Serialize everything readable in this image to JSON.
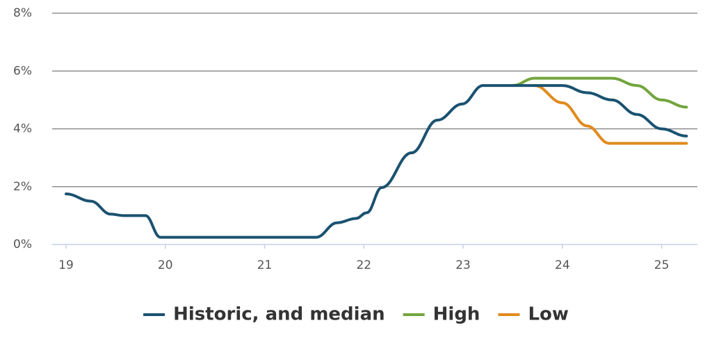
{
  "chart_data": {
    "type": "line",
    "xlim": [
      18.86,
      25.36
    ],
    "xticks": [
      19,
      20,
      21,
      22,
      23,
      24,
      25
    ],
    "ylim": [
      0,
      8
    ],
    "yticks": [
      {
        "value": 0,
        "label": "0%"
      },
      {
        "value": 2,
        "label": "2%"
      },
      {
        "value": 4,
        "label": "4%"
      },
      {
        "value": 6,
        "label": "6%"
      },
      {
        "value": 8,
        "label": "8%"
      }
    ],
    "grid": true,
    "legend": "bottom",
    "series": [
      {
        "name": "Historic, and median",
        "color": "#1a5270",
        "x": [
          19.0,
          19.25,
          19.45,
          19.58,
          19.8,
          19.95,
          20.0,
          21.52,
          21.73,
          21.92,
          22.03,
          22.18,
          22.48,
          22.74,
          22.99,
          23.2,
          23.6,
          24.0,
          24.25,
          24.5,
          24.75,
          25.0,
          25.25
        ],
        "values": [
          1.75,
          1.5,
          1.05,
          1.0,
          1.0,
          0.25,
          0.25,
          0.25,
          0.75,
          0.9,
          1.1,
          1.97,
          3.17,
          4.3,
          4.86,
          5.5,
          5.5,
          5.5,
          5.25,
          5.0,
          4.5,
          4.0,
          3.75
        ]
      },
      {
        "name": "High",
        "color": "#72a53d",
        "x": [
          23.5,
          23.72,
          24.5,
          24.75,
          25.0,
          25.25
        ],
        "values": [
          5.5,
          5.75,
          5.75,
          5.5,
          5.0,
          4.75
        ]
      },
      {
        "name": "Low",
        "color": "#e08b1e",
        "x": [
          23.72,
          24.0,
          24.25,
          24.47,
          25.25
        ],
        "values": [
          5.5,
          4.9,
          4.1,
          3.5,
          3.5
        ]
      }
    ]
  }
}
